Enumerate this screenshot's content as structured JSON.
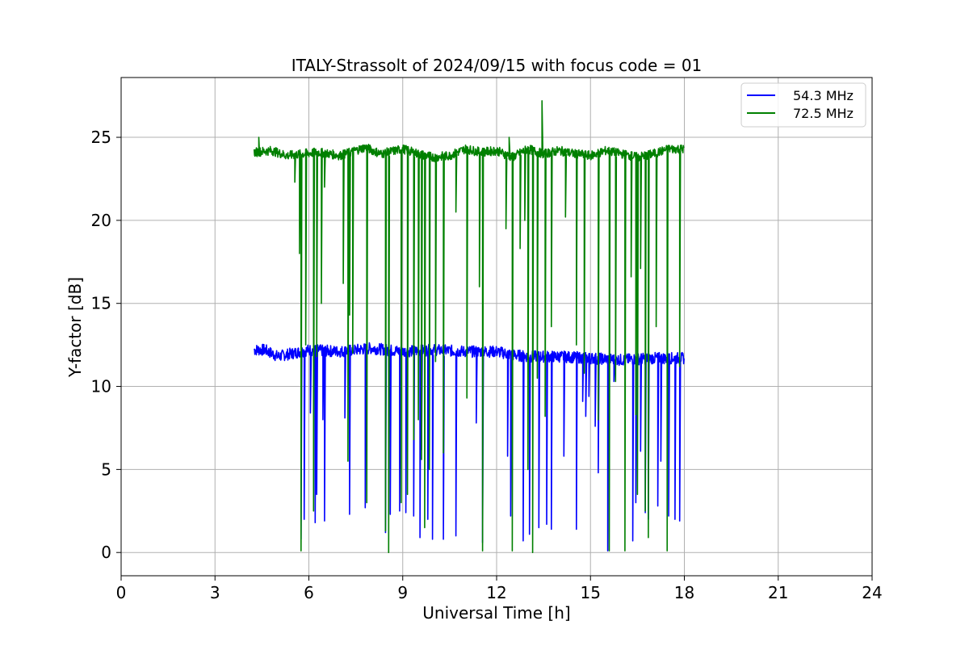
{
  "chart_data": {
    "type": "line",
    "title": "ITALY-Strassolt of 2024/09/15 with focus code = 01",
    "xlabel": "Universal Time [h]",
    "ylabel": "Y-factor [dB]",
    "xlim": [
      0,
      24
    ],
    "ylim": [
      -1.4,
      28.6
    ],
    "xticks": [
      0,
      3,
      6,
      9,
      12,
      15,
      18,
      21,
      24
    ],
    "yticks": [
      0,
      5,
      10,
      15,
      20,
      25
    ],
    "grid": true,
    "legend_position": "top-right",
    "series": [
      {
        "name": "54.3 MHz",
        "color": "#0000ff",
        "baseline": [
          [
            4.25,
            12.2
          ],
          [
            4.6,
            12.2
          ],
          [
            5.0,
            11.8
          ],
          [
            5.5,
            12.0
          ],
          [
            6.0,
            12.2
          ],
          [
            7.0,
            12.1
          ],
          [
            8.0,
            12.3
          ],
          [
            9.0,
            12.1
          ],
          [
            10.0,
            12.2
          ],
          [
            11.0,
            12.1
          ],
          [
            12.0,
            12.1
          ],
          [
            12.5,
            11.9
          ],
          [
            13.0,
            11.8
          ],
          [
            14.0,
            11.8
          ],
          [
            15.0,
            11.7
          ],
          [
            16.0,
            11.6
          ],
          [
            17.0,
            11.7
          ],
          [
            18.0,
            11.7
          ]
        ],
        "dips": [
          [
            5.75,
            0.8
          ],
          [
            5.85,
            2.0
          ],
          [
            6.05,
            8.4
          ],
          [
            6.2,
            1.8
          ],
          [
            6.25,
            3.5
          ],
          [
            6.45,
            8.0
          ],
          [
            6.5,
            1.9
          ],
          [
            7.15,
            8.1
          ],
          [
            7.3,
            2.3
          ],
          [
            7.8,
            2.7
          ],
          [
            8.45,
            1.2
          ],
          [
            8.6,
            2.3
          ],
          [
            8.9,
            2.5
          ],
          [
            9.1,
            2.4
          ],
          [
            9.35,
            2.2
          ],
          [
            9.55,
            0.9
          ],
          [
            9.6,
            6.2
          ],
          [
            9.8,
            2.0
          ],
          [
            9.95,
            0.8
          ],
          [
            10.3,
            0.8
          ],
          [
            10.7,
            1.0
          ],
          [
            11.35,
            7.8
          ],
          [
            11.55,
            0.6
          ],
          [
            12.35,
            5.8
          ],
          [
            12.45,
            2.2
          ],
          [
            12.85,
            0.7
          ],
          [
            13.05,
            1.1
          ],
          [
            13.35,
            1.5
          ],
          [
            13.6,
            1.7
          ],
          [
            13.75,
            1.4
          ],
          [
            14.15,
            5.8
          ],
          [
            14.55,
            1.4
          ],
          [
            14.75,
            9.1
          ],
          [
            14.85,
            8.2
          ],
          [
            14.95,
            9.4
          ],
          [
            15.15,
            7.6
          ],
          [
            15.25,
            4.8
          ],
          [
            15.55,
            0.1
          ],
          [
            15.75,
            10.3
          ],
          [
            16.35,
            0.7
          ],
          [
            16.45,
            3.0
          ],
          [
            16.6,
            6.1
          ],
          [
            16.75,
            2.4
          ],
          [
            16.85,
            2.0
          ],
          [
            17.15,
            2.8
          ],
          [
            17.25,
            5.5
          ],
          [
            17.5,
            2.2
          ],
          [
            17.7,
            2.0
          ],
          [
            17.85,
            1.9
          ]
        ]
      },
      {
        "name": "72.5 MHz",
        "color": "#008000",
        "baseline": [
          [
            4.25,
            24.1
          ],
          [
            4.8,
            24.2
          ],
          [
            5.3,
            23.9
          ],
          [
            5.8,
            24.0
          ],
          [
            6.3,
            24.1
          ],
          [
            7.0,
            23.9
          ],
          [
            7.8,
            24.4
          ],
          [
            8.3,
            24.0
          ],
          [
            9.0,
            24.3
          ],
          [
            9.5,
            24.0
          ],
          [
            10.0,
            23.8
          ],
          [
            10.5,
            23.9
          ],
          [
            11.0,
            24.3
          ],
          [
            11.5,
            24.1
          ],
          [
            12.0,
            24.2
          ],
          [
            12.5,
            23.8
          ],
          [
            13.0,
            24.3
          ],
          [
            13.5,
            24.0
          ],
          [
            14.0,
            24.2
          ],
          [
            14.5,
            24.0
          ],
          [
            15.0,
            23.9
          ],
          [
            15.5,
            24.2
          ],
          [
            16.0,
            24.0
          ],
          [
            16.5,
            23.8
          ],
          [
            17.0,
            24.0
          ],
          [
            17.5,
            24.3
          ],
          [
            18.0,
            24.3
          ]
        ],
        "spikes": [
          [
            4.4,
            25.0
          ],
          [
            12.4,
            25.0
          ],
          [
            13.45,
            27.2
          ]
        ],
        "dips": [
          [
            5.55,
            22.3
          ],
          [
            5.7,
            18.0
          ],
          [
            5.75,
            0.1
          ],
          [
            5.9,
            12.5
          ],
          [
            6.15,
            2.5
          ],
          [
            6.25,
            11.8
          ],
          [
            6.4,
            15.0
          ],
          [
            6.5,
            22.0
          ],
          [
            7.1,
            16.2
          ],
          [
            7.25,
            5.5
          ],
          [
            7.3,
            14.3
          ],
          [
            7.4,
            12.0
          ],
          [
            7.85,
            3.0
          ],
          [
            8.45,
            1.3
          ],
          [
            8.55,
            0.0
          ],
          [
            8.95,
            3.0
          ],
          [
            9.15,
            3.5
          ],
          [
            9.35,
            6.8
          ],
          [
            9.5,
            8.0
          ],
          [
            9.6,
            5.6
          ],
          [
            9.7,
            1.5
          ],
          [
            9.85,
            5.0
          ],
          [
            10.05,
            11.5
          ],
          [
            10.3,
            6.0
          ],
          [
            10.7,
            20.5
          ],
          [
            11.05,
            9.3
          ],
          [
            11.45,
            16.0
          ],
          [
            11.55,
            0.1
          ],
          [
            12.3,
            19.5
          ],
          [
            12.5,
            0.1
          ],
          [
            12.75,
            18.3
          ],
          [
            12.9,
            20.0
          ],
          [
            13.0,
            5.0
          ],
          [
            13.15,
            0.0
          ],
          [
            13.3,
            10.5
          ],
          [
            13.55,
            8.2
          ],
          [
            13.75,
            13.6
          ],
          [
            14.2,
            20.2
          ],
          [
            14.55,
            12.5
          ],
          [
            14.8,
            10.8
          ],
          [
            15.25,
            8.0
          ],
          [
            15.6,
            0.1
          ],
          [
            15.8,
            10.3
          ],
          [
            16.1,
            0.1
          ],
          [
            16.3,
            16.6
          ],
          [
            16.45,
            8.3
          ],
          [
            16.5,
            3.5
          ],
          [
            16.6,
            17.1
          ],
          [
            16.75,
            2.5
          ],
          [
            16.85,
            0.9
          ],
          [
            17.1,
            13.6
          ],
          [
            17.45,
            0.1
          ],
          [
            17.85,
            11.2
          ]
        ]
      }
    ]
  }
}
